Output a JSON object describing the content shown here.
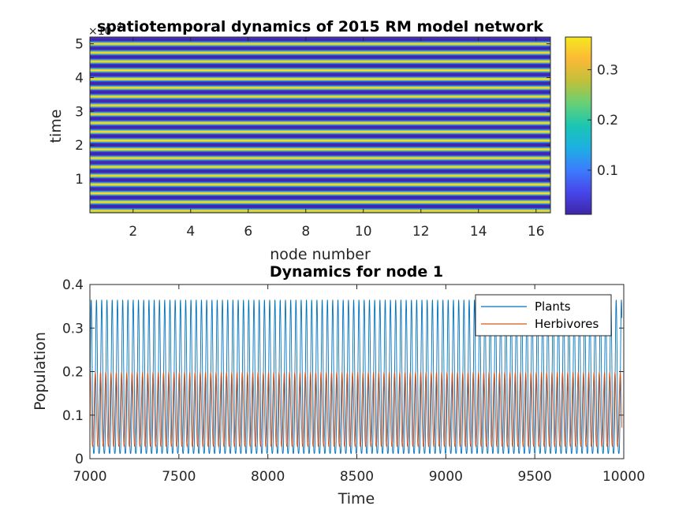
{
  "chart_data": [
    {
      "type": "heatmap",
      "title": "spatiotemporal dynamics of 2015 RM model network",
      "xlabel": "node number",
      "ylabel": "time",
      "y_exponent_label": "×10",
      "y_exponent_power": "4",
      "xlim": [
        0.5,
        16.5
      ],
      "ylim": [
        0,
        52000
      ],
      "xticks": [
        2,
        4,
        6,
        8,
        10,
        12,
        14,
        16
      ],
      "yticks": [
        1,
        2,
        3,
        4,
        5
      ],
      "colorbar": {
        "range": [
          0.012,
          0.365
        ],
        "ticks": [
          0.1,
          0.2,
          0.3
        ]
      },
      "colormap": [
        "#3e26a8",
        "#4746eb",
        "#3c7cfd",
        "#1db0e3",
        "#1ac6b2",
        "#66d076",
        "#c0c03a",
        "#fbb936",
        "#f5e81e"
      ],
      "pattern": "horizontal stripes, identical across all 16 nodes (synchronized oscillation)",
      "stripe_period_time_units": 1000
    },
    {
      "type": "line",
      "title": "Dynamics for node 1",
      "xlabel": "Time",
      "ylabel": "Population",
      "xlim": [
        7000,
        10000
      ],
      "ylim": [
        0,
        0.4
      ],
      "xticks": [
        7000,
        7500,
        8000,
        8500,
        9000,
        9500,
        10000
      ],
      "yticks": [
        0,
        0.1,
        0.2,
        0.3,
        0.4
      ],
      "legend_position": "top-right",
      "series": [
        {
          "name": "Plants",
          "color": "#0072bd",
          "period": 29.5,
          "min": 0.012,
          "max": 0.365
        },
        {
          "name": "Herbivores",
          "color": "#d95319",
          "period": 29.5,
          "min": 0.028,
          "max": 0.198
        }
      ]
    }
  ]
}
